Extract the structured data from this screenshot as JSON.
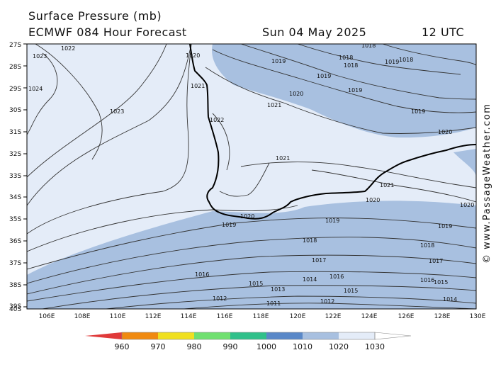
{
  "header": {
    "title": "Surface Pressure (mb)",
    "model_forecast": "ECMWF 084 Hour Forecast",
    "date": "Sun 04 May 2025",
    "time": "12 UTC"
  },
  "map": {
    "lat_labels": [
      "27S",
      "28S",
      "29S",
      "30S",
      "31S",
      "32S",
      "33S",
      "34S",
      "35S",
      "36S",
      "37S",
      "38S",
      "39S",
      "40S"
    ],
    "lon_labels": [
      "106E",
      "108E",
      "110E",
      "112E",
      "114E",
      "116E",
      "118E",
      "120E",
      "122E",
      "124E",
      "126E",
      "128E",
      "130E"
    ],
    "isobar_labels": [
      "1022",
      "1023",
      "1020",
      "1019",
      "1018",
      "1018",
      "1018",
      "1018",
      "1019",
      "1019",
      "1019",
      "1021",
      "1020",
      "1021",
      "1019",
      "1023",
      "1024",
      "1022",
      "1020",
      "1021",
      "1021",
      "1020",
      "1020",
      "1020",
      "1019",
      "1019",
      "1019",
      "1018",
      "1018",
      "1017",
      "1017",
      "1016",
      "1016",
      "1016",
      "1015",
      "1015",
      "1015",
      "1014",
      "1014",
      "1013",
      "1012",
      "1012",
      "1011"
    ],
    "colors": {
      "land_outline": "#000000",
      "high_pressure_fill": "#e4ecf8",
      "mid_pressure_fill": "#a8c0e0"
    }
  },
  "copyright": "© www.PassageWeather.com",
  "legend": {
    "labels": [
      "960",
      "970",
      "980",
      "990",
      "1000",
      "1010",
      "1020",
      "1030"
    ],
    "colors": [
      "#e03a3a",
      "#f08a10",
      "#f0e020",
      "#70e070",
      "#30c08a",
      "#5a88c8",
      "#a8c0e0",
      "#e4ecf8"
    ]
  }
}
